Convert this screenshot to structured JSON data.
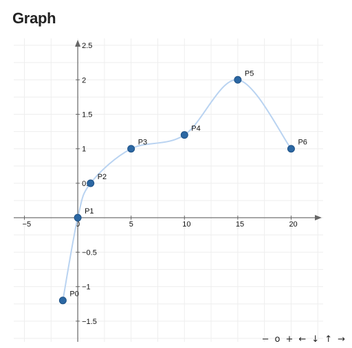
{
  "title": "Graph",
  "navigation": {
    "zoom_out": "−",
    "zoom_reset": "o",
    "zoom_in": "+",
    "left": "←",
    "down": "↓",
    "up": "↑",
    "right": "→"
  },
  "chart_data": {
    "type": "line",
    "curve": "smooth spline through points",
    "xlim": [
      -6,
      23
    ],
    "ylim": [
      -1.8,
      2.6
    ],
    "grid": true,
    "x_ticks": [
      -5,
      0,
      5,
      10,
      15,
      20
    ],
    "x_tick_labels": [
      "−5",
      "0",
      "5",
      "10",
      "15",
      "20"
    ],
    "y_ticks": [
      -1.5,
      -1,
      -0.5,
      0.5,
      1,
      1.5,
      2,
      2.5
    ],
    "y_tick_labels": [
      "−1.5",
      "−1",
      "−0.5",
      "0.5",
      "1",
      "1.5",
      "2",
      "2.5"
    ],
    "colors": {
      "curve": "#b9d3f1",
      "point": "#2b67a3",
      "axis": "#666666",
      "grid": "#eeeeee"
    },
    "points": [
      {
        "label": "P0",
        "x": -1.4,
        "y": -1.2
      },
      {
        "label": "P1",
        "x": 0,
        "y": 0
      },
      {
        "label": "P2",
        "x": 1.2,
        "y": 0.5
      },
      {
        "label": "P3",
        "x": 5,
        "y": 1
      },
      {
        "label": "P4",
        "x": 10,
        "y": 1.2
      },
      {
        "label": "P5",
        "x": 15,
        "y": 2
      },
      {
        "label": "P6",
        "x": 20,
        "y": 1
      }
    ]
  }
}
